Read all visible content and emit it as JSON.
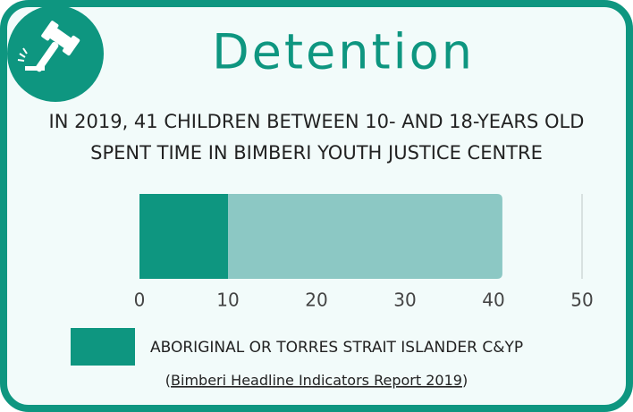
{
  "chart_data": {
    "type": "stacked_bar_horizontal",
    "title": "Detention",
    "subtitle": [
      "IN 2019, 41 CHILDREN BETWEEN 10- AND 18-YEARS OLD",
      "SPENT TIME IN BIMBERI YOUTH JUSTICE CENTRE"
    ],
    "series": [
      {
        "name": "ABORIGINAL OR TORRES STRAIT ISLANDER C&YP",
        "color": "#0e9680",
        "values": [
          10
        ]
      },
      {
        "color": "#8cc8c4",
        "values": [
          31
        ]
      }
    ],
    "xlim": [
      0,
      50
    ],
    "xticks": [
      0,
      10,
      20,
      30,
      40,
      50
    ],
    "source": {
      "open": "(",
      "link": "Bimberi Headline Indicators Report 2019",
      "close": ")"
    }
  }
}
